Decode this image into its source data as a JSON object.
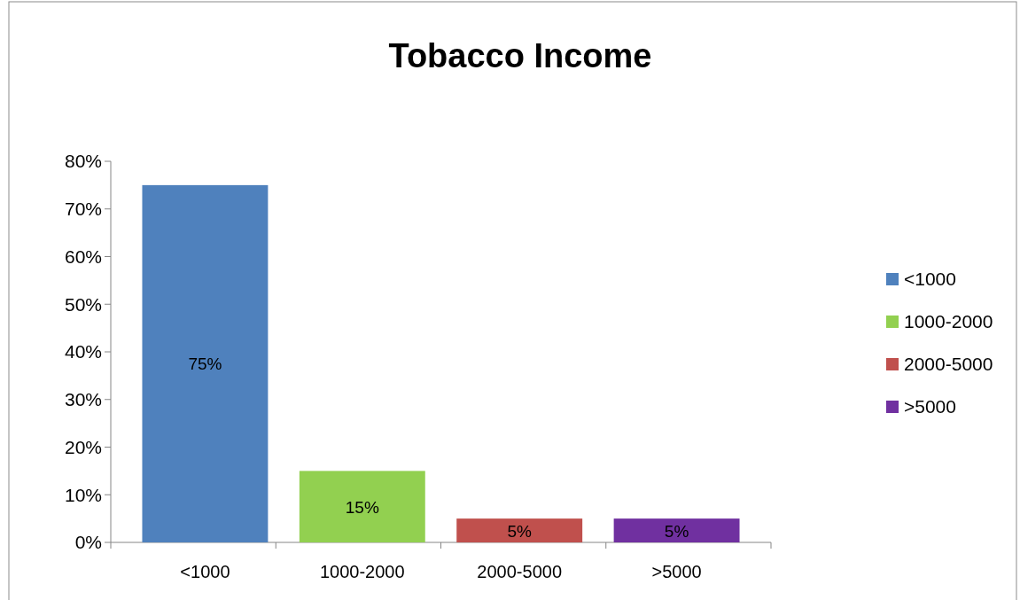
{
  "chart_data": {
    "type": "bar",
    "title": "Tobacco Income",
    "categories": [
      "<1000",
      "1000-2000",
      "2000-5000",
      ">5000"
    ],
    "series": [
      {
        "name": "<1000",
        "color": "#4f81bd",
        "values": [
          75,
          null,
          null,
          null
        ],
        "value_labels": [
          "75%",
          null,
          null,
          null
        ]
      },
      {
        "name": "1000-2000",
        "color": "#92d050",
        "values": [
          null,
          15,
          null,
          null
        ],
        "value_labels": [
          null,
          "15%",
          null,
          null
        ]
      },
      {
        "name": "2000-5000",
        "color": "#c0504d",
        "values": [
          null,
          null,
          5,
          null
        ],
        "value_labels": [
          null,
          null,
          "5%",
          null
        ]
      },
      {
        "name": ">5000",
        "color": "#7030a0",
        "values": [
          null,
          null,
          null,
          5
        ],
        "value_labels": [
          null,
          null,
          null,
          "5%"
        ]
      }
    ],
    "ylim": [
      0,
      80
    ],
    "yticks": [
      {
        "value": 0,
        "label": "0%"
      },
      {
        "value": 10,
        "label": "10%"
      },
      {
        "value": 20,
        "label": "20%"
      },
      {
        "value": 30,
        "label": "30%"
      },
      {
        "value": 40,
        "label": "40%"
      },
      {
        "value": 50,
        "label": "50%"
      },
      {
        "value": 60,
        "label": "60%"
      },
      {
        "value": 70,
        "label": "70%"
      },
      {
        "value": 80,
        "label": "80%"
      }
    ],
    "legend": "right"
  }
}
